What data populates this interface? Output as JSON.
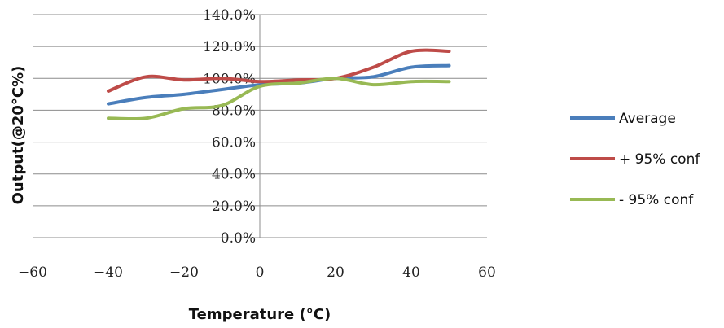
{
  "chart_data": {
    "type": "line",
    "title": "",
    "xlabel": "Temperature (°C)",
    "ylabel": "Output(@20°C%)",
    "xlim": [
      -60,
      60
    ],
    "ylim": [
      0,
      140
    ],
    "xticks": [
      "-60",
      "-40",
      "-20",
      "0",
      "20",
      "40",
      "60"
    ],
    "yticks": [
      "0.0%",
      "20.0%",
      "40.0%",
      "60.0%",
      "80.0%",
      "100.0%",
      "120.0%",
      "140.0%"
    ],
    "grid": "horizontal",
    "legend_position": "right",
    "series": [
      {
        "name": "Average",
        "color": "#4a7ebb",
        "x": [
          -40,
          -30,
          -20,
          -10,
          0,
          10,
          20,
          30,
          40,
          50
        ],
        "y": [
          84,
          88,
          90,
          93,
          96,
          97,
          100,
          101,
          107,
          108
        ]
      },
      {
        "name": "+ 95% conf",
        "color": "#be4b48",
        "x": [
          -40,
          -30,
          -20,
          -10,
          0,
          10,
          20,
          30,
          40,
          50
        ],
        "y": [
          92,
          101,
          99,
          100,
          98,
          99,
          100,
          107,
          117,
          117
        ]
      },
      {
        "name": "- 95% conf",
        "color": "#98b954",
        "x": [
          -40,
          -30,
          -20,
          -10,
          0,
          10,
          20,
          30,
          40,
          50
        ],
        "y": [
          75,
          75,
          81,
          83,
          95,
          97,
          100,
          96,
          98,
          98
        ]
      }
    ]
  }
}
